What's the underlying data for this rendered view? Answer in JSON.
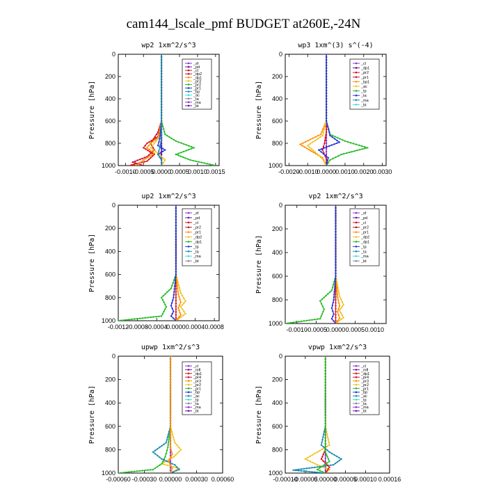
{
  "title": "cam144_lscale_pmf  BUDGET at260E,-24N",
  "colors": {
    "purple": "#8b2be2",
    "darkpurple": "#6a0dad",
    "red": "#dd1111",
    "crimson": "#c8102e",
    "orange": "#ff8c00",
    "yellow": "#f0c020",
    "green": "#22bb22",
    "blue": "#2233dd",
    "teal": "#1a8ab0",
    "cyan": "#33dddd",
    "gray": "#888888"
  },
  "chart_data": [
    {
      "type": "line",
      "title": "wp2   1xm^2/s^3",
      "ylabel": "Pressure [hPa]",
      "xlim": [
        -0.0012,
        0.0016
      ],
      "ylim": [
        1000,
        0
      ],
      "xticks": [
        -0.001,
        -0.0005,
        0.0,
        0.0005,
        0.001,
        0.0015
      ],
      "xtick_labels": [
        "-0.0010",
        "-0.0005",
        "0.0000",
        "0.0005",
        "0.0010",
        "0.0015"
      ],
      "yticks": [
        0,
        200,
        400,
        600,
        800,
        1000
      ],
      "legend": [
        "_sf",
        "_pd",
        "_cl",
        "_dp2",
        "_dp1",
        "_pr3",
        "_pr2",
        "_pr1",
        "_bp",
        "_ac",
        "_ta",
        "_ma",
        "_bt"
      ],
      "series": [
        {
          "name": "_sf",
          "color": "purple",
          "x": [
            0,
            0,
            0,
            0,
            0,
            0,
            0,
            0,
            0
          ],
          "y": [
            0,
            200,
            400,
            600,
            700,
            800,
            900,
            950,
            1000
          ]
        },
        {
          "name": "_pd",
          "color": "darkpurple",
          "x": [
            0,
            0,
            0,
            0,
            0,
            0,
            0,
            0,
            0
          ],
          "y": [
            0,
            200,
            400,
            600,
            700,
            800,
            900,
            950,
            1000
          ]
        },
        {
          "name": "_cl",
          "color": "crimson",
          "x": [
            0,
            0,
            0,
            0,
            -0.0001,
            -0.0003,
            -0.0002,
            -0.0004,
            -0.0008,
            -0.0005
          ],
          "y": [
            0,
            200,
            400,
            600,
            700,
            800,
            860,
            920,
            970,
            1000
          ]
        },
        {
          "name": "_dp2",
          "color": "red",
          "x": [
            0,
            0,
            0,
            -0.0001,
            -0.0004,
            -0.0005,
            -0.0002,
            -0.0004,
            -0.0009
          ],
          "y": [
            0,
            200,
            600,
            740,
            800,
            840,
            900,
            960,
            1000
          ]
        },
        {
          "name": "_dp1",
          "color": "orange",
          "x": [
            0,
            0,
            0,
            -0.0001,
            -0.0003,
            -0.0004,
            -0.0002,
            -0.0005,
            -0.0007
          ],
          "y": [
            0,
            200,
            600,
            750,
            800,
            840,
            890,
            950,
            1000
          ]
        },
        {
          "name": "_pr3",
          "color": "yellow",
          "x": [
            0,
            0,
            0,
            -5e-05,
            -0.0002,
            -0.0003,
            -0.0001,
            0.0001,
            0
          ],
          "y": [
            0,
            200,
            600,
            740,
            800,
            840,
            890,
            950,
            1000
          ]
        },
        {
          "name": "_pr1",
          "color": "green",
          "x": [
            0,
            0,
            0,
            0.0001,
            0.0004,
            0.0009,
            0.0004,
            0.0008,
            0.0015
          ],
          "y": [
            0,
            200,
            600,
            720,
            780,
            840,
            900,
            950,
            1000
          ]
        },
        {
          "name": "_ac",
          "color": "blue",
          "x": [
            0,
            0,
            0,
            -5e-05,
            -0.0001,
            0.0001,
            -0.0001,
            0,
            0
          ],
          "y": [
            0,
            200,
            600,
            760,
            820,
            860,
            900,
            950,
            1000
          ]
        },
        {
          "name": "_ta",
          "color": "teal",
          "x": [
            0,
            0,
            0,
            0,
            -5e-05,
            -0.0001,
            0,
            0
          ],
          "y": [
            0,
            200,
            600,
            760,
            840,
            900,
            950,
            1000
          ]
        }
      ]
    },
    {
      "type": "line",
      "title": "wp3   1xm^(3) s^(-4)",
      "ylabel": "Pressure [hPa]",
      "xlim": [
        -0.0022,
        0.0032
      ],
      "ylim": [
        1000,
        0
      ],
      "xticks": [
        -0.002,
        -0.001,
        0.0,
        0.001,
        0.002,
        0.003
      ],
      "xtick_labels": [
        "-0.0020",
        "-0.0010",
        "0.0000",
        "0.0010",
        "0.0020",
        "0.0030"
      ],
      "yticks": [
        0,
        200,
        400,
        600,
        800,
        1000
      ],
      "legend": [
        "_cl",
        "_dp1",
        "_pr2",
        "_pr1",
        "_bp1",
        "_ac",
        "_tp",
        "_ta",
        "_ma",
        "_bt"
      ],
      "series": [
        {
          "name": "_cl",
          "color": "purple",
          "x": [
            0,
            0,
            0,
            0,
            0,
            0,
            0,
            0
          ],
          "y": [
            0,
            200,
            400,
            600,
            700,
            800,
            900,
            1000
          ]
        },
        {
          "name": "_dp1",
          "color": "red",
          "x": [
            0,
            0,
            0,
            0,
            -0.0001,
            -0.0002,
            0,
            0
          ],
          "y": [
            0,
            200,
            400,
            700,
            800,
            860,
            940,
            1000
          ]
        },
        {
          "name": "_pr2",
          "color": "orange",
          "x": [
            0,
            0,
            0,
            -0.0003,
            -0.0014,
            -0.0008,
            -0.0002,
            0
          ],
          "y": [
            0,
            200,
            600,
            720,
            810,
            870,
            930,
            1000
          ]
        },
        {
          "name": "_pr1",
          "color": "yellow",
          "x": [
            0,
            0,
            0,
            -0.0002,
            -0.001,
            -0.0006,
            -0.0002,
            0
          ],
          "y": [
            0,
            200,
            600,
            730,
            820,
            880,
            940,
            1000
          ]
        },
        {
          "name": "_bp1",
          "color": "green",
          "x": [
            0,
            0,
            0,
            0.0002,
            0.001,
            0.0022,
            0.0008,
            0.0002,
            0
          ],
          "y": [
            0,
            200,
            600,
            720,
            780,
            840,
            900,
            950,
            1000
          ]
        },
        {
          "name": "_ac",
          "color": "blue",
          "x": [
            0,
            0,
            0,
            0.0002,
            0.0007,
            -0.0004,
            0.0001,
            0
          ],
          "y": [
            0,
            200,
            600,
            730,
            790,
            860,
            930,
            1000
          ]
        }
      ]
    },
    {
      "type": "line",
      "title": "up2   1xm^2/s^3",
      "ylabel": "Pressure [hPa]",
      "xlim": [
        -0.0012,
        0.0009
      ],
      "ylim": [
        1000,
        0
      ],
      "xticks": [
        -0.0012,
        -0.0008,
        -0.0004,
        0.0,
        0.0004,
        0.0008
      ],
      "xtick_labels": [
        "-0.0012",
        "-0.0008",
        "-0.0004",
        "0.0000",
        "0.0004",
        "0.0008"
      ],
      "yticks": [
        0,
        200,
        400,
        600,
        800,
        1000
      ],
      "legend": [
        "_sf",
        "_pd",
        "_cl",
        "_pr2",
        "_pr1",
        "_dp2",
        "_dp1",
        "_tp",
        "_ta",
        "_ma",
        "_bt"
      ],
      "series": [
        {
          "name": "_sf",
          "color": "red",
          "x": [
            0,
            0,
            0,
            0,
            0,
            0,
            0,
            0,
            0,
            0,
            0
          ],
          "y": [
            0,
            100,
            200,
            300,
            400,
            500,
            600,
            700,
            800,
            900,
            1000
          ]
        },
        {
          "name": "_pr2",
          "color": "yellow",
          "x": [
            0,
            0,
            0,
            0.0001,
            0.0002,
            0.0001,
            0.0002,
            0
          ],
          "y": [
            0,
            200,
            600,
            760,
            830,
            880,
            940,
            1000
          ]
        },
        {
          "name": "_pr1",
          "color": "orange",
          "x": [
            0,
            0,
            0,
            5e-05,
            0.0001,
            5e-05,
            0.0001,
            0
          ],
          "y": [
            0,
            200,
            600,
            770,
            840,
            890,
            950,
            1000
          ]
        },
        {
          "name": "_dp1",
          "color": "green",
          "x": [
            0,
            0,
            0,
            -0.0001,
            -0.0003,
            -0.0002,
            -0.0003,
            -0.0012
          ],
          "y": [
            0,
            200,
            600,
            720,
            800,
            880,
            960,
            1000
          ]
        },
        {
          "name": "_tp",
          "color": "blue",
          "x": [
            0,
            0,
            0,
            -5e-05,
            -0.0001,
            -5e-05,
            -0.0001,
            0
          ],
          "y": [
            0,
            200,
            600,
            800,
            870,
            920,
            960,
            1000
          ]
        }
      ]
    },
    {
      "type": "line",
      "title": "vp2   1xm^2/s^3",
      "ylabel": "Pressure [hPa]",
      "xlim": [
        -0.0013,
        0.0013
      ],
      "ylim": [
        1000,
        0
      ],
      "xticks": [
        -0.001,
        -0.0005,
        0.0,
        0.0005,
        0.001
      ],
      "xtick_labels": [
        "-0.0010",
        "-0.0005",
        "0.0000",
        "0.0005",
        "0.0010"
      ],
      "yticks": [
        0,
        200,
        400,
        600,
        800,
        1000
      ],
      "legend": [
        "_sf",
        "_pd",
        "_cl",
        "_pr2",
        "_pr1",
        "_dp2",
        "_dp1",
        "_tp",
        "_ta",
        "_ma",
        "_bt"
      ],
      "series": [
        {
          "name": "_sf",
          "color": "red",
          "x": [
            0,
            0,
            0,
            0,
            0,
            0,
            0,
            0,
            0,
            0,
            0
          ],
          "y": [
            0,
            100,
            200,
            300,
            400,
            500,
            600,
            700,
            800,
            900,
            1000
          ]
        },
        {
          "name": "_pr2",
          "color": "yellow",
          "x": [
            0,
            0,
            0,
            0.0001,
            0.0002,
            0.0001,
            0.0002,
            0
          ],
          "y": [
            0,
            200,
            600,
            770,
            840,
            890,
            950,
            1000
          ]
        },
        {
          "name": "_pr1",
          "color": "orange",
          "x": [
            0,
            0,
            0,
            5e-05,
            0.0001,
            5e-05,
            0.0001,
            0
          ],
          "y": [
            0,
            200,
            600,
            780,
            850,
            900,
            955,
            1000
          ]
        },
        {
          "name": "_dp1",
          "color": "green",
          "x": [
            0,
            0,
            0,
            -0.0001,
            -0.0004,
            -0.0003,
            -0.0004,
            -0.0013
          ],
          "y": [
            0,
            200,
            600,
            720,
            810,
            880,
            960,
            1000
          ]
        },
        {
          "name": "_tp",
          "color": "blue",
          "x": [
            0,
            0,
            0,
            -5e-05,
            -0.0001,
            -5e-05,
            -0.0001,
            0
          ],
          "y": [
            0,
            200,
            600,
            800,
            870,
            920,
            960,
            1000
          ]
        }
      ]
    },
    {
      "type": "line",
      "title": "upwp   1xm^2/s^3",
      "ylabel": "Pressure [hPa]",
      "xlim": [
        -0.0006,
        0.0006
      ],
      "ylim": [
        1000,
        0
      ],
      "xticks": [
        -0.0006,
        -0.0003,
        0.0,
        0.0003,
        0.0006
      ],
      "xtick_labels": [
        "-0.00060",
        "-0.00030",
        "0.00000",
        "0.00030",
        "0.00060"
      ],
      "yticks": [
        0,
        200,
        400,
        600,
        800,
        1000
      ],
      "legend": [
        "_cl",
        "_mfl",
        "_dp1",
        "_pr4",
        "_pr3",
        "_pr2",
        "_pr1",
        "_bp",
        "_ac",
        "_tp",
        "_ta",
        "_ma",
        "_bt"
      ],
      "series": [
        {
          "name": "_cl",
          "color": "purple",
          "x": [
            0,
            0,
            0,
            0,
            0,
            0,
            0,
            0,
            0
          ],
          "y": [
            0,
            200,
            400,
            600,
            700,
            800,
            900,
            950,
            1000
          ]
        },
        {
          "name": "_pr2",
          "color": "yellow",
          "x": [
            0,
            0,
            0,
            5e-05,
            0.00012,
            4e-05,
            -0.0001,
            0.0001,
            0
          ],
          "y": [
            0,
            200,
            600,
            740,
            800,
            860,
            920,
            960,
            1000
          ]
        },
        {
          "name": "_bp",
          "color": "green",
          "x": [
            0,
            0,
            0,
            -3e-05,
            -6e-05,
            -0.0001,
            -0.0002,
            -0.0006
          ],
          "y": [
            0,
            200,
            600,
            780,
            860,
            920,
            970,
            1000
          ]
        },
        {
          "name": "_ta",
          "color": "teal",
          "x": [
            0,
            0,
            0,
            -5e-05,
            -0.0002,
            -0.0001,
            5e-05,
            0.0001,
            0
          ],
          "y": [
            0,
            200,
            600,
            740,
            820,
            880,
            930,
            970,
            1000
          ]
        },
        {
          "name": "_pr1",
          "color": "orange",
          "x": [
            0,
            0,
            0,
            0,
            2e-05,
            -2e-05,
            2e-05,
            0
          ],
          "y": [
            0,
            200,
            600,
            780,
            840,
            900,
            960,
            1000
          ]
        }
      ]
    },
    {
      "type": "line",
      "title": "vpwp   1xm^2/s^3",
      "ylabel": "Pressure [hPa]",
      "xlim": [
        -0.0001,
        0.00016
      ],
      "ylim": [
        1000,
        0
      ],
      "xticks": [
        -0.0001,
        -5e-05,
        0.0,
        5e-05,
        0.0001,
        0.00016
      ],
      "xtick_labels": [
        "-0.00010",
        "-0.00005",
        "0.00000",
        "0.00005",
        "0.00010",
        "0.00016"
      ],
      "yticks": [
        0,
        200,
        400,
        600,
        800,
        1000
      ],
      "legend": [
        "_cl",
        "_mfl",
        "_dp1",
        "_pr4",
        "_pr3",
        "_pr2",
        "_pr1",
        "_bp",
        "_ac",
        "_tp",
        "_ta",
        "_ma",
        "_bt"
      ],
      "series": [
        {
          "name": "_cl",
          "color": "purple",
          "x": [
            0,
            0,
            0,
            0,
            0,
            0,
            0,
            0,
            0
          ],
          "y": [
            0,
            200,
            400,
            600,
            700,
            800,
            900,
            950,
            1000
          ]
        },
        {
          "name": "_pr2",
          "color": "yellow",
          "x": [
            0,
            0,
            0,
            1e-05,
            -2e-05,
            -5e-05,
            -2e-05,
            1e-05,
            0
          ],
          "y": [
            0,
            200,
            600,
            760,
            820,
            880,
            930,
            970,
            1000
          ]
        },
        {
          "name": "_ta",
          "color": "teal",
          "x": [
            0,
            0,
            0,
            -1e-05,
            1e-05,
            4e-05,
            2e-05,
            -8e-05,
            0
          ],
          "y": [
            0,
            200,
            600,
            760,
            820,
            880,
            930,
            975,
            1000
          ]
        },
        {
          "name": "_dp1",
          "color": "red",
          "x": [
            0,
            0,
            0,
            0,
            -1e-05,
            1e-05,
            0
          ],
          "y": [
            0,
            200,
            600,
            800,
            880,
            950,
            1000
          ]
        },
        {
          "name": "_bp",
          "color": "green",
          "x": [
            0,
            0,
            0,
            0,
            1e-05,
            -2e-05,
            0
          ],
          "y": [
            0,
            200,
            600,
            820,
            900,
            970,
            1000
          ]
        }
      ]
    }
  ]
}
